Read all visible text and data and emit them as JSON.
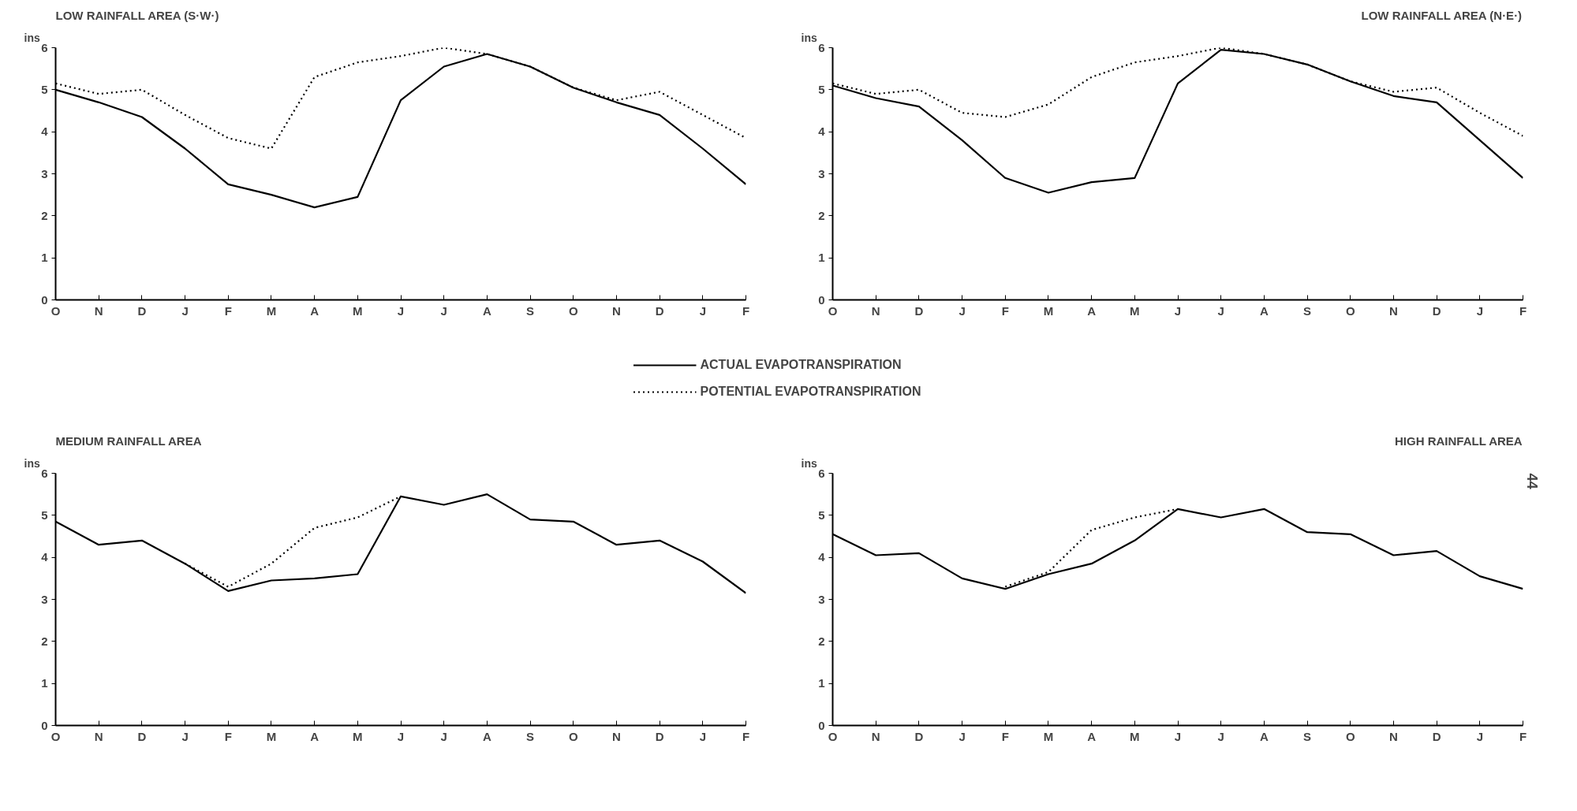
{
  "chart_data": [
    {
      "type": "line",
      "title": "LOW RAINFALL AREA (S·W·)",
      "ylabel": "ins",
      "categories": [
        "O",
        "N",
        "D",
        "J",
        "F",
        "M",
        "A",
        "M",
        "J",
        "J",
        "A",
        "S",
        "O",
        "N",
        "D",
        "J",
        "F"
      ],
      "ylim": [
        0,
        6
      ],
      "yticks": [
        0,
        1,
        2,
        3,
        4,
        5,
        6
      ],
      "grid": false,
      "legend": "bottom",
      "series": [
        {
          "name": "ACTUAL EVAPOTRANSPIRATION",
          "color": "#000000",
          "line_style": "solid",
          "values": [
            5.0,
            4.7,
            4.35,
            3.6,
            2.75,
            2.5,
            2.2,
            2.45,
            4.75,
            5.55,
            5.85,
            5.55,
            5.05,
            4.7,
            4.4,
            3.6,
            2.75
          ]
        },
        {
          "name": "POTENTIAL EVAPOTRANSPIRATION",
          "color": "#000000",
          "line_style": "dotted",
          "values": [
            5.15,
            4.9,
            5.0,
            4.4,
            3.85,
            3.6,
            5.3,
            5.65,
            5.8,
            6.0,
            5.85,
            5.55,
            5.05,
            4.75,
            4.95,
            4.4,
            3.85
          ]
        }
      ]
    },
    {
      "type": "line",
      "title": "LOW RAINFALL AREA (N·E·)",
      "ylabel": "ins",
      "categories": [
        "O",
        "N",
        "D",
        "J",
        "F",
        "M",
        "A",
        "M",
        "J",
        "J",
        "A",
        "S",
        "O",
        "N",
        "D",
        "J",
        "F"
      ],
      "ylim": [
        0,
        6
      ],
      "yticks": [
        0,
        1,
        2,
        3,
        4,
        5,
        6
      ],
      "grid": false,
      "series": [
        {
          "color": "#000000",
          "line_style": "solid",
          "values": [
            5.1,
            4.8,
            4.6,
            3.8,
            2.9,
            2.55,
            2.8,
            2.9,
            5.15,
            5.95,
            5.85,
            5.6,
            5.2,
            4.85,
            4.7,
            3.8,
            2.9
          ]
        },
        {
          "color": "#000000",
          "line_style": "dotted",
          "values": [
            5.15,
            4.9,
            5.0,
            4.45,
            4.35,
            4.65,
            5.3,
            5.65,
            5.8,
            6.0,
            5.85,
            5.6,
            5.2,
            4.95,
            5.05,
            4.45,
            3.9
          ]
        }
      ]
    },
    {
      "type": "line",
      "title": "MEDIUM RAINFALL AREA",
      "ylabel": "ins",
      "categories": [
        "O",
        "N",
        "D",
        "J",
        "F",
        "M",
        "A",
        "M",
        "J",
        "J",
        "A",
        "S",
        "O",
        "N",
        "D",
        "J",
        "F"
      ],
      "ylim": [
        0,
        6
      ],
      "yticks": [
        0,
        1,
        2,
        3,
        4,
        5,
        6
      ],
      "grid": false,
      "series": [
        {
          "color": "#000000",
          "line_style": "solid",
          "values": [
            4.85,
            4.3,
            4.4,
            3.85,
            3.2,
            3.45,
            3.5,
            3.6,
            5.45,
            5.25,
            5.5,
            4.9,
            4.85,
            4.3,
            4.4,
            3.9,
            3.15
          ]
        },
        {
          "color": "#000000",
          "line_style": "dotted",
          "values": [
            null,
            null,
            null,
            3.85,
            3.3,
            3.85,
            4.7,
            4.95,
            5.45,
            null,
            null,
            null,
            null,
            null,
            null,
            null,
            null
          ]
        }
      ]
    },
    {
      "type": "line",
      "title": "HIGH RAINFALL AREA",
      "ylabel": "ins",
      "categories": [
        "O",
        "N",
        "D",
        "J",
        "F",
        "M",
        "A",
        "M",
        "J",
        "J",
        "A",
        "S",
        "O",
        "N",
        "D",
        "J",
        "F"
      ],
      "ylim": [
        0,
        6
      ],
      "yticks": [
        0,
        1,
        2,
        3,
        4,
        5,
        6
      ],
      "grid": false,
      "annotations": [
        "44"
      ],
      "series": [
        {
          "color": "#000000",
          "line_style": "solid",
          "values": [
            4.55,
            4.05,
            4.1,
            3.5,
            3.25,
            3.6,
            3.85,
            4.4,
            5.15,
            4.95,
            5.15,
            4.6,
            4.55,
            4.05,
            4.15,
            3.55,
            3.25
          ]
        },
        {
          "color": "#000000",
          "line_style": "dotted",
          "values": [
            null,
            null,
            null,
            null,
            3.3,
            3.65,
            4.65,
            4.95,
            5.15,
            null,
            null,
            null,
            null,
            null,
            null,
            null,
            null
          ]
        }
      ]
    }
  ]
}
